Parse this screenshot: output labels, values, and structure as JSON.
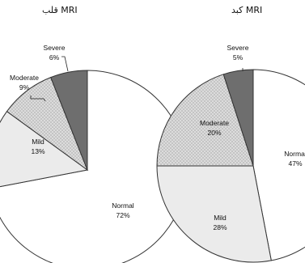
{
  "chart_data": [
    {
      "type": "pie",
      "title": "MRI قلب",
      "slices": [
        {
          "label": "Normal",
          "value": 72,
          "value_text": "72%"
        },
        {
          "label": "Mild",
          "value": 13,
          "value_text": "13%"
        },
        {
          "label": "Moderate",
          "value": 9,
          "value_text": "9%"
        },
        {
          "label": "Severe",
          "value": 6,
          "value_text": "6%"
        }
      ],
      "legend": "none"
    },
    {
      "type": "pie",
      "title": "MRI کبد",
      "slices": [
        {
          "label": "Normal",
          "value": 47,
          "value_text": "47%"
        },
        {
          "label": "Mild",
          "value": 28,
          "value_text": "28%"
        },
        {
          "label": "Moderate",
          "value": 20,
          "value_text": "20%"
        },
        {
          "label": "Severe",
          "value": 5,
          "value_text": "5%"
        }
      ],
      "legend": "none"
    }
  ],
  "colors": {
    "Normal": "#ffffff",
    "Mild": "#ebebeb",
    "Moderate": "#dcdcdc",
    "Severe": "#6e6e6e",
    "stroke": "#333333"
  }
}
